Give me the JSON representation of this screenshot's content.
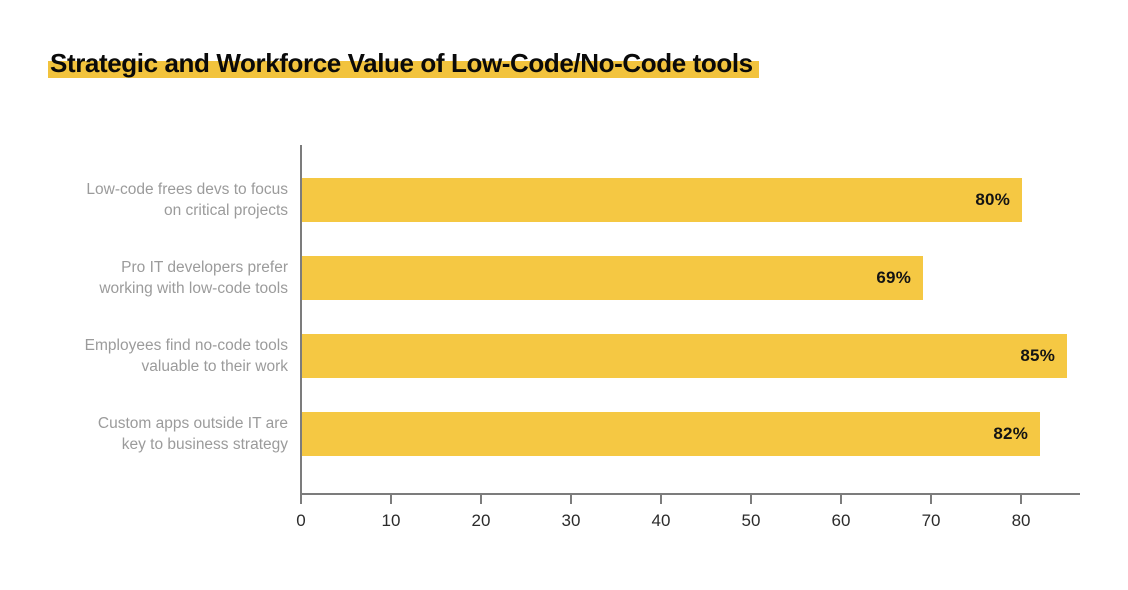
{
  "page": {
    "background": "#ffffff"
  },
  "header": {
    "title": "Strategic and Workforce Value of Low-Code/No-Code tools",
    "highlight_color": "#f2c33d",
    "title_color": "#0a0a0a"
  },
  "colors": {
    "bar": "#f5c843",
    "axis_line": "#7c7c7c",
    "category_label": "#9b9b9b",
    "tick_label": "#2b2b2b",
    "value_label": "#141414"
  },
  "chart_data": {
    "type": "bar",
    "orientation": "horizontal",
    "title": "Strategic and Workforce Value of Low-Code/No-Code tools",
    "categories": [
      "Low-code frees devs to focus\non critical projects",
      "Pro IT developers prefer\nworking with low-code tools",
      "Employees find no-code tools\nvaluable to their work",
      "Custom apps outside IT are\nkey to business strategy"
    ],
    "values": [
      80,
      69,
      85,
      82
    ],
    "value_labels": [
      "80%",
      "69%",
      "85%",
      "82%"
    ],
    "unit": "%",
    "xlabel": "",
    "ylabel": "",
    "xlim": [
      0,
      86.44
    ],
    "xticks": [
      0,
      10,
      20,
      30,
      40,
      50,
      60,
      70,
      80
    ],
    "grid": false,
    "legend": false,
    "value_label_position": "inside-end",
    "bar_color": "#f5c843"
  }
}
